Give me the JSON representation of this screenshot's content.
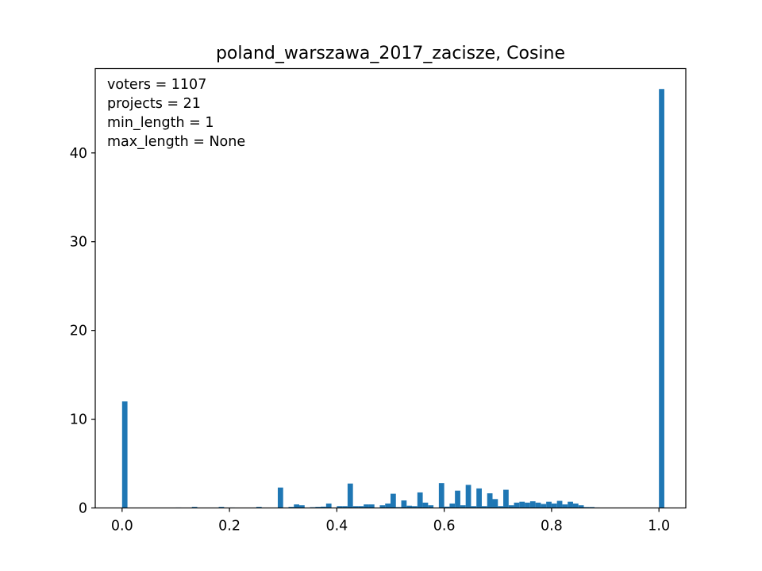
{
  "chart_data": {
    "type": "bar",
    "title": "poland_warszawa_2017_zacisze, Cosine",
    "xlabel": "",
    "ylabel": "",
    "xlim": [
      -0.05,
      1.05
    ],
    "ylim": [
      0,
      49.5
    ],
    "xticks": [
      "0.0",
      "0.2",
      "0.4",
      "0.6",
      "0.8",
      "1.0"
    ],
    "yticks": [
      "0",
      "10",
      "20",
      "30",
      "40"
    ],
    "grid": false,
    "annotations": [
      "voters = 1107",
      "projects = 21",
      "min_length = 1",
      "max_length = None"
    ],
    "bin_width": 0.01,
    "series": [
      {
        "color": "#1f77b4",
        "bins": [
          [
            0.0,
            12.0
          ],
          [
            0.1,
            0.05
          ],
          [
            0.13,
            0.12
          ],
          [
            0.18,
            0.12
          ],
          [
            0.2,
            0.05
          ],
          [
            0.25,
            0.12
          ],
          [
            0.29,
            2.3
          ],
          [
            0.31,
            0.12
          ],
          [
            0.32,
            0.4
          ],
          [
            0.33,
            0.3
          ],
          [
            0.35,
            0.08
          ],
          [
            0.36,
            0.12
          ],
          [
            0.37,
            0.15
          ],
          [
            0.38,
            0.5
          ],
          [
            0.4,
            0.2
          ],
          [
            0.41,
            0.2
          ],
          [
            0.42,
            2.75
          ],
          [
            0.43,
            0.2
          ],
          [
            0.44,
            0.2
          ],
          [
            0.45,
            0.4
          ],
          [
            0.46,
            0.4
          ],
          [
            0.48,
            0.3
          ],
          [
            0.49,
            0.5
          ],
          [
            0.5,
            1.6
          ],
          [
            0.51,
            0.1
          ],
          [
            0.52,
            0.85
          ],
          [
            0.53,
            0.25
          ],
          [
            0.54,
            0.2
          ],
          [
            0.55,
            1.75
          ],
          [
            0.56,
            0.6
          ],
          [
            0.57,
            0.3
          ],
          [
            0.59,
            2.8
          ],
          [
            0.6,
            0.15
          ],
          [
            0.61,
            0.5
          ],
          [
            0.62,
            1.95
          ],
          [
            0.63,
            0.3
          ],
          [
            0.64,
            2.6
          ],
          [
            0.65,
            0.2
          ],
          [
            0.66,
            2.2
          ],
          [
            0.67,
            0.2
          ],
          [
            0.68,
            1.65
          ],
          [
            0.69,
            1.0
          ],
          [
            0.7,
            0.2
          ],
          [
            0.71,
            2.05
          ],
          [
            0.72,
            0.3
          ],
          [
            0.73,
            0.6
          ],
          [
            0.74,
            0.7
          ],
          [
            0.75,
            0.6
          ],
          [
            0.76,
            0.75
          ],
          [
            0.77,
            0.6
          ],
          [
            0.78,
            0.45
          ],
          [
            0.79,
            0.7
          ],
          [
            0.8,
            0.5
          ],
          [
            0.81,
            0.8
          ],
          [
            0.82,
            0.4
          ],
          [
            0.83,
            0.7
          ],
          [
            0.84,
            0.5
          ],
          [
            0.85,
            0.3
          ],
          [
            0.86,
            0.1
          ],
          [
            0.87,
            0.1
          ],
          [
            0.88,
            0.05
          ],
          [
            1.0,
            47.2
          ]
        ]
      }
    ]
  }
}
